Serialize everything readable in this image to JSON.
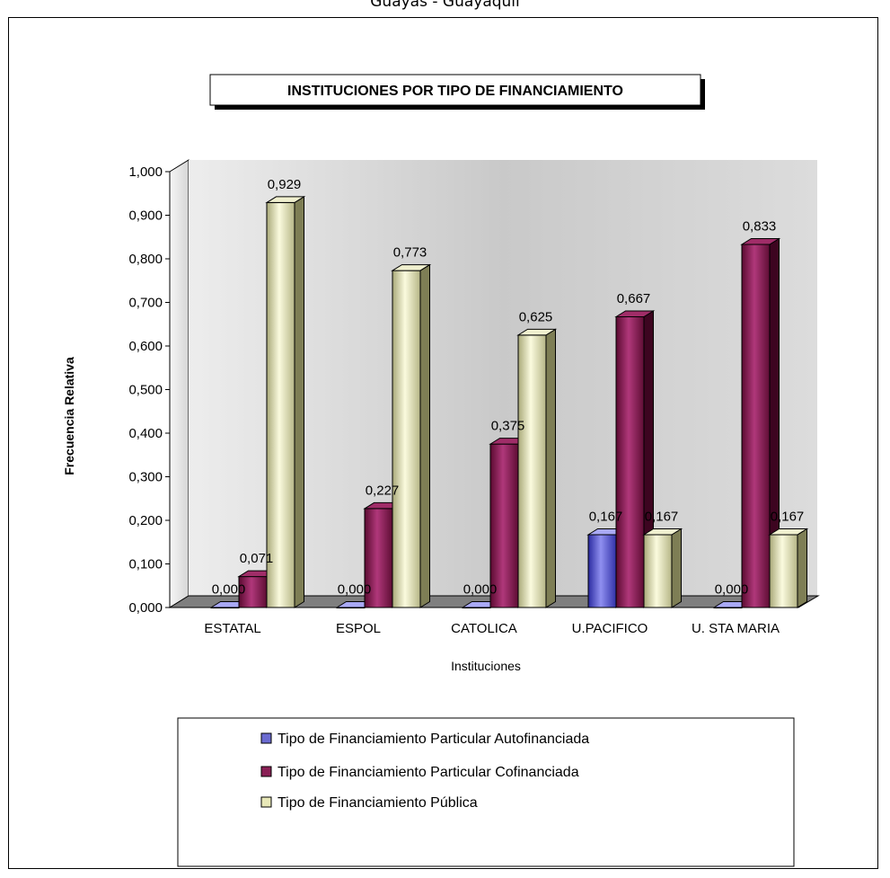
{
  "page_header": "Guayas - Guayaquil",
  "chart_data": {
    "type": "bar",
    "title": "INSTITUCIONES POR TIPO DE FINANCIAMIENTO",
    "xlabel": "Instituciones",
    "ylabel": "Frecuencia Relativa",
    "categories": [
      "ESTATAL",
      "ESPOL",
      "CATOLICA",
      "U.PACIFICO",
      "U. STA MARIA"
    ],
    "series": [
      {
        "name": "Tipo de Financiamiento Particular Autofinanciada",
        "values": [
          0.0,
          0.0,
          0.0,
          0.167,
          0.0
        ],
        "labels": [
          "0,000",
          "0,000",
          "0,000",
          "0,167",
          "0,000"
        ],
        "color": "#7a7ad6"
      },
      {
        "name": "Tipo de Financiamiento Particular Cofinanciada",
        "values": [
          0.071,
          0.227,
          0.375,
          0.667,
          0.833
        ],
        "labels": [
          "0,071",
          "0,227",
          "0,375",
          "0,667",
          "0,833"
        ],
        "color": "#8a1f55"
      },
      {
        "name": "Tipo de Financiamiento Pública",
        "values": [
          0.929,
          0.773,
          0.625,
          0.167,
          0.167
        ],
        "labels": [
          "0,929",
          "0,773",
          "0,625",
          "0,167",
          "0,167"
        ],
        "color": "#d8d8a8"
      }
    ],
    "ylim": [
      0,
      1
    ],
    "yticks": [
      "0,000",
      "0,100",
      "0,200",
      "0,300",
      "0,400",
      "0,500",
      "0,600",
      "0,700",
      "0,800",
      "0,900",
      "1,000"
    ],
    "style": "3d-column",
    "legend_position": "bottom",
    "grid": false,
    "background_wall": "gray gradient"
  }
}
